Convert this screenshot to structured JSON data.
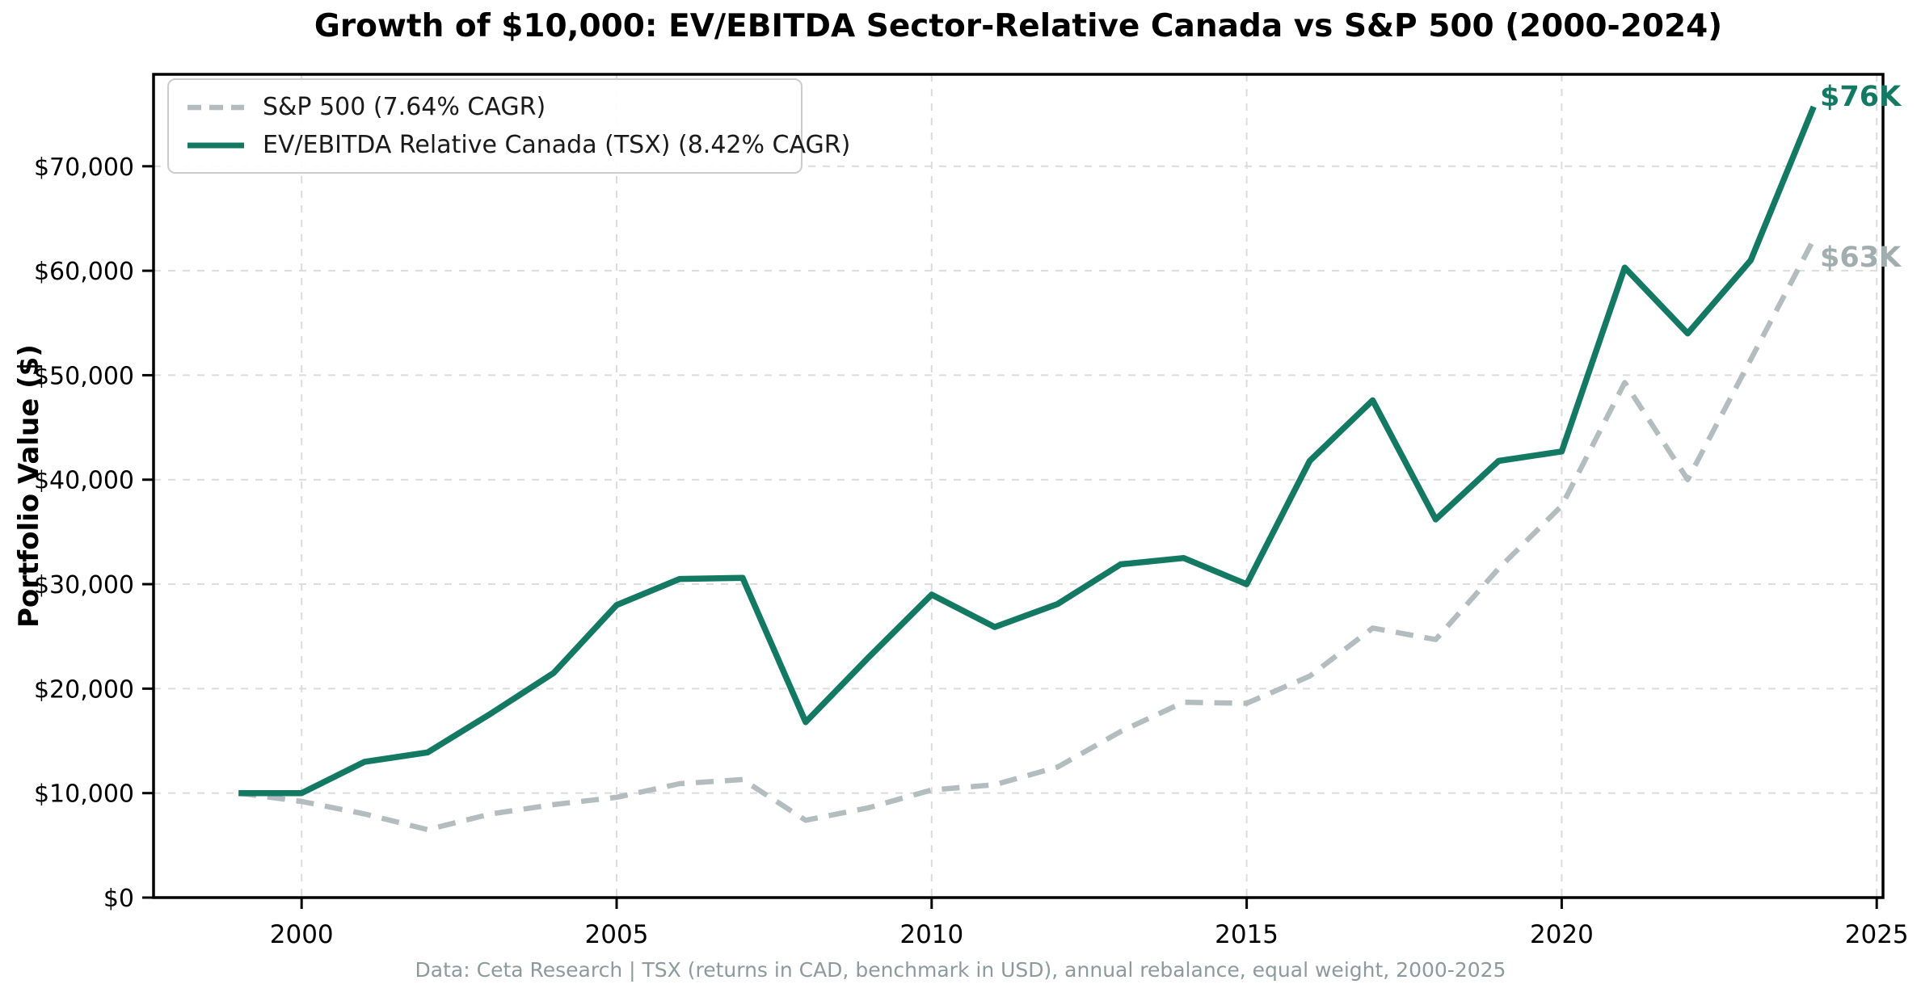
{
  "footer_note": "Data: Ceta Research | TSX (returns in CAD, benchmark in USD), annual rebalance, equal weight, 2000-2025",
  "colors": {
    "evebitda_line": "#147963",
    "sp500_line": "#b3bcbe",
    "sp500_annotation": "#a2adb0",
    "grid": "#dcdcdc",
    "spine": "#000000",
    "tick_label": "#000000",
    "legend_border": "#cccccc",
    "footer_text": "#8d9a9d"
  },
  "chart_data": {
    "type": "line",
    "title": "Growth of $10,000: EV/EBITDA Sector-Relative Canada vs S&P 500 (2000-2024)",
    "xlabel": "",
    "ylabel": "Portfolio Value ($)",
    "grid": true,
    "legend_position": "upper left",
    "xlim": [
      1997.65,
      2025.1
    ],
    "ylim": [
      0,
      78800
    ],
    "x": [
      1999,
      2000,
      2001,
      2002,
      2003,
      2004,
      2005,
      2006,
      2007,
      2008,
      2009,
      2010,
      2011,
      2012,
      2013,
      2014,
      2015,
      2016,
      2017,
      2018,
      2019,
      2020,
      2021,
      2022,
      2023,
      2024
    ],
    "series": [
      {
        "name": "S&P 500 (7.64% CAGR)",
        "style": "dashed",
        "color": "#b3bcbe",
        "values": [
          10000,
          9200,
          8000,
          6500,
          8000,
          8900,
          9600,
          10900,
          11300,
          7400,
          8600,
          10300,
          10800,
          12500,
          15900,
          18700,
          18600,
          21200,
          25800,
          24700,
          31500,
          37500,
          49300,
          40000,
          51500,
          63000
        ]
      },
      {
        "name": "EV/EBITDA Relative Canada (TSX) (8.42% CAGR)",
        "style": "solid",
        "color": "#147963",
        "values": [
          10000,
          10000,
          13000,
          13900,
          17600,
          21500,
          28000,
          30500,
          30600,
          16800,
          23000,
          29000,
          25900,
          28100,
          31900,
          32500,
          30000,
          41800,
          47600,
          36200,
          41800,
          42700,
          60300,
          54000,
          61000,
          75700
        ]
      }
    ],
    "x_ticks": [
      {
        "value": 2000,
        "label": "2000"
      },
      {
        "value": 2005,
        "label": "2005"
      },
      {
        "value": 2010,
        "label": "2010"
      },
      {
        "value": 2015,
        "label": "2015"
      },
      {
        "value": 2020,
        "label": "2020"
      },
      {
        "value": 2025,
        "label": "2025"
      }
    ],
    "y_ticks": [
      {
        "value": 0,
        "label": "$0"
      },
      {
        "value": 10000,
        "label": "$10,000"
      },
      {
        "value": 20000,
        "label": "$20,000"
      },
      {
        "value": 30000,
        "label": "$30,000"
      },
      {
        "value": 40000,
        "label": "$40,000"
      },
      {
        "value": 50000,
        "label": "$50,000"
      },
      {
        "value": 60000,
        "label": "$60,000"
      },
      {
        "value": 70000,
        "label": "$70,000"
      }
    ],
    "annotations": [
      {
        "text": "$76K",
        "series": "EV/EBITDA Relative Canada (TSX)",
        "year": 2024,
        "value": 75700,
        "color": "#147963"
      },
      {
        "text": "$63K",
        "series": "S&P 500",
        "year": 2024,
        "value": 63000,
        "color": "#a2adb0"
      }
    ]
  }
}
